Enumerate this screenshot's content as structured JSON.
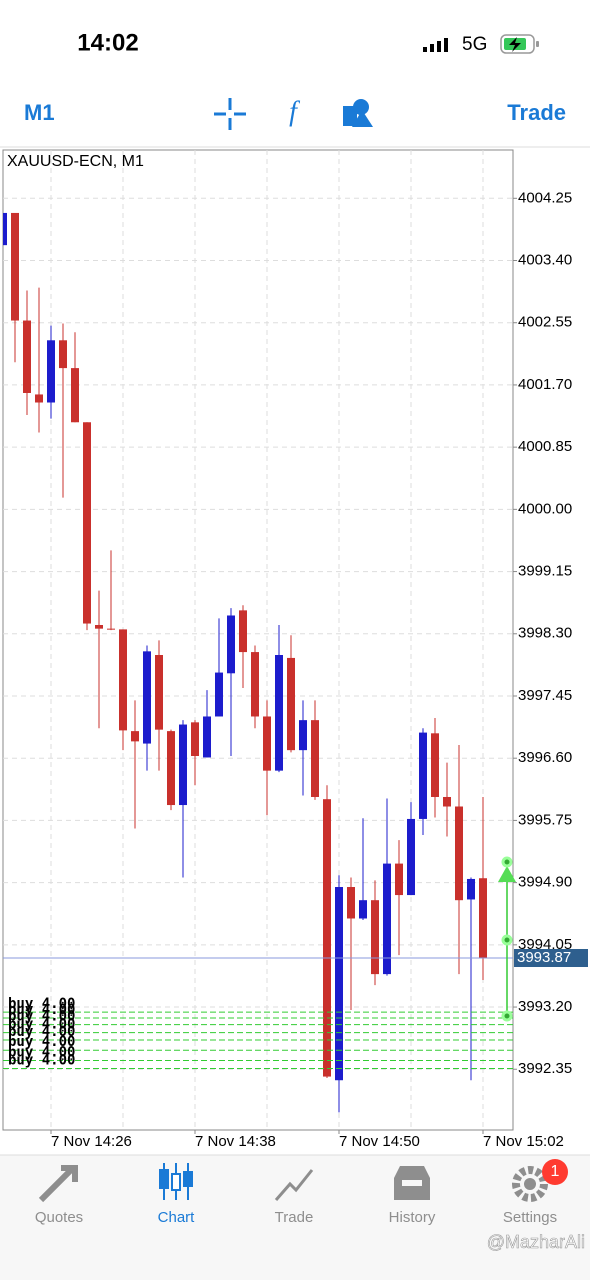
{
  "status_bar": {
    "time": "14:02",
    "network": "5G"
  },
  "toolbar": {
    "timeframe": "M1",
    "trade": "Trade"
  },
  "chart_data": {
    "type": "candlestick",
    "title": "XAUUSD-ECN, M1",
    "categories": [
      null,
      null,
      null,
      null,
      "7 Nov 14:26",
      null,
      null,
      null,
      null,
      null,
      null,
      null,
      null,
      null,
      null,
      null,
      "7 Nov 14:38",
      null,
      null,
      null,
      null,
      null,
      null,
      null,
      null,
      null,
      null,
      null,
      "7 Nov 14:50",
      null,
      null,
      null,
      null,
      null,
      null,
      null,
      null,
      null,
      null,
      null,
      "7 Nov 15:02"
    ],
    "open": [
      4003.61,
      4004.05,
      4002.58,
      4001.57,
      4001.46,
      4002.31,
      4001.93,
      4001.19,
      3998.42,
      3998.37,
      3998.36,
      3996.97,
      3996.8,
      3998.01,
      3996.97,
      3995.96,
      3997.09,
      3996.61,
      3997.17,
      3997.76,
      3998.62,
      3998.05,
      3997.17,
      3996.43,
      3997.97,
      3996.71,
      3997.12,
      3996.04,
      3992.2,
      3994.84,
      3994.41,
      3994.66,
      3993.65,
      3995.16,
      3994.73,
      3995.77,
      3996.94,
      3996.07,
      3995.94,
      3994.67,
      3994.96
    ],
    "high": [
      4004.05,
      4004.05,
      4002.99,
      4003.03,
      4002.51,
      4002.54,
      4002.42,
      4001.19,
      3998.89,
      3999.44,
      3998.36,
      3997.39,
      3998.14,
      3998.21,
      3996.99,
      3997.12,
      3997.12,
      3997.53,
      3998.51,
      3998.65,
      3998.69,
      3998.14,
      3997.39,
      3998.42,
      3998.28,
      3997.39,
      3997.39,
      3996.23,
      3995.0,
      3994.97,
      3995.78,
      3994.93,
      3996.05,
      3995.48,
      3996.0,
      3997.01,
      3997.15,
      3996.54,
      3996.78,
      3994.97,
      3996.07
    ],
    "low": [
      4003.61,
      4002.01,
      4001.29,
      4001.05,
      4001.24,
      4000.16,
      4001.19,
      3998.35,
      3997.01,
      3998.35,
      3996.71,
      3995.64,
      3996.43,
      3996.43,
      3995.89,
      3994.97,
      3996.23,
      3996.61,
      3997.17,
      3996.63,
      3997.56,
      3997.01,
      3995.82,
      3996.41,
      3996.68,
      3996.09,
      3996.03,
      3992.23,
      3991.76,
      3993.16,
      3994.39,
      3993.5,
      3993.63,
      3993.91,
      3994.73,
      3995.55,
      3995.79,
      3995.53,
      3993.65,
      3992.2,
      3993.57
    ],
    "close": [
      4004.05,
      4002.58,
      4001.59,
      4001.46,
      4002.31,
      4001.93,
      4001.19,
      3998.44,
      3998.37,
      3998.36,
      3996.98,
      3996.83,
      3998.06,
      3996.99,
      3995.96,
      3997.06,
      3996.63,
      3997.17,
      3997.77,
      3998.55,
      3998.05,
      3997.17,
      3996.43,
      3998.01,
      3996.71,
      3997.12,
      3996.07,
      3992.25,
      3994.84,
      3994.41,
      3994.66,
      3993.65,
      3995.16,
      3994.73,
      3995.77,
      3996.95,
      3996.07,
      3995.94,
      3994.66,
      3994.95,
      3993.87
    ],
    "up_color": "#1c1ccc",
    "down_color": "#c9302c",
    "ylim": [
      3991.52,
      4004.91
    ],
    "yticks": [
      4004.25,
      {
        "value": 4003.4,
        "label": "4003.40"
      },
      4002.55,
      {
        "value": 4001.7,
        "label": "4001.70"
      },
      4000.85,
      {
        "value": 4000,
        "label": "4000.00"
      },
      3999.15,
      {
        "value": 3998.3,
        "label": "3998.30"
      },
      3997.45,
      {
        "value": 3996.6,
        "label": "3996.60"
      },
      3995.75,
      {
        "value": 3994.9,
        "label": "3994.90"
      },
      3994.05,
      {
        "value": 3993.2,
        "label": "3993.20"
      },
      3992.35
    ],
    "grid": true,
    "current_price": 3993.87,
    "orders": [
      {
        "label": "buy 4.00",
        "price": 3993.13
      },
      {
        "label": "buy 4.00",
        "price": 3993.05
      },
      {
        "label": "buy 4.00",
        "price": 3992.96
      },
      {
        "label": "buy 4.00",
        "price": 3992.85
      },
      {
        "label": "buy 4.00",
        "price": 3992.75
      },
      {
        "label": "buy 4.00",
        "price": 3992.61
      },
      {
        "label": "buy 4.00",
        "price": 3992.47
      },
      {
        "label": "buy 4.00",
        "price": 3992.36
      }
    ],
    "order_color": "#33cc33"
  },
  "tab_bar": {
    "tabs": [
      "Quotes",
      "Chart",
      "Trade",
      "History",
      "Settings"
    ],
    "active_tab": 1,
    "settings_badge": 1
  },
  "watermark": "@MazharAli"
}
